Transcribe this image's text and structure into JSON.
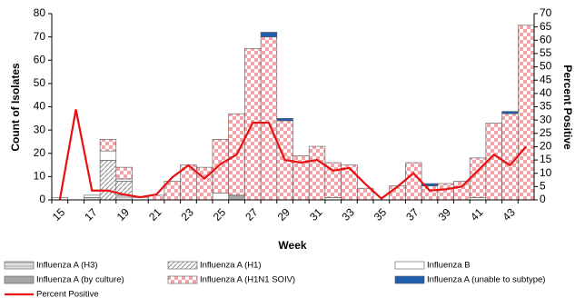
{
  "chart_data": {
    "type": "bar",
    "x_label": "Week",
    "y_label": "Count of Isolates",
    "y2_label": "Percent Positive",
    "categories": [
      "15",
      null,
      "17",
      null,
      "19",
      null,
      "21",
      null,
      "23",
      null,
      "25",
      null,
      "27",
      null,
      "29",
      null,
      "31",
      null,
      "33",
      null,
      "35",
      null,
      "37",
      null,
      "39",
      null,
      "41",
      null,
      "43",
      null
    ],
    "stacked": true,
    "series": [
      {
        "name": "Influenza A (H3)",
        "color": "#d0d0d0",
        "values": [
          0,
          0,
          1,
          0,
          2,
          0,
          0,
          0,
          0,
          0,
          0,
          0,
          0,
          0,
          0,
          0,
          0,
          0,
          0,
          0,
          0,
          0,
          0,
          0,
          0,
          0,
          0,
          0,
          0,
          0
        ]
      },
      {
        "name": "Influenza A (H1)",
        "color": "#a0a0a0",
        "values": [
          0,
          0,
          0,
          17,
          6,
          0,
          0,
          0,
          0,
          0,
          0,
          0,
          0,
          0,
          0,
          0,
          0,
          0,
          0,
          0,
          0,
          0,
          0,
          0,
          0,
          0,
          0,
          0,
          0,
          0
        ]
      },
      {
        "name": "Influenza B",
        "color": "#ffffff",
        "values": [
          1,
          0,
          1,
          4,
          1,
          1,
          0,
          0,
          0,
          0,
          3,
          0,
          0,
          0,
          0,
          0,
          0,
          1,
          0,
          0,
          0,
          0,
          0,
          0,
          0,
          0,
          1,
          0,
          0,
          0
        ]
      },
      {
        "name": "Influenza A (by culture)",
        "color": "#a6a6a6",
        "values": [
          0,
          0,
          0,
          0,
          0,
          0,
          0,
          0,
          0,
          0,
          0,
          2,
          0,
          0,
          0,
          0,
          0,
          0,
          0,
          0,
          0,
          0,
          0,
          0,
          0,
          0,
          0,
          0,
          0,
          0
        ]
      },
      {
        "name": "Influenza A (H1N1 SOIV)",
        "color": "#f4a3a8",
        "values": [
          0,
          0,
          0,
          5,
          5,
          0,
          2,
          8,
          15,
          14,
          23,
          35,
          65,
          70,
          34,
          19,
          23,
          15,
          15,
          5,
          0,
          6,
          16,
          6,
          7,
          8,
          17,
          33,
          37,
          75
        ]
      },
      {
        "name": "Influenza A (unable to subtype)",
        "color": "#1f5fad",
        "values": [
          0,
          0,
          0,
          0,
          0,
          0,
          0,
          0,
          0,
          0,
          0,
          0,
          0,
          2,
          1,
          0,
          0,
          0,
          0,
          0,
          0,
          0,
          0,
          1,
          0,
          0,
          0,
          0,
          1,
          0
        ]
      },
      {
        "name": "Percent Positive",
        "color": "#e81010",
        "type": "line",
        "axis": "y2",
        "values": [
          0,
          34,
          3.5,
          3.5,
          2,
          1,
          2,
          8.5,
          13,
          8,
          13.5,
          17,
          29,
          29,
          15,
          14,
          15,
          11,
          12,
          6,
          0.5,
          5,
          10,
          3.5,
          4,
          5,
          11,
          17,
          13,
          20
        ]
      }
    ],
    "ylim": [
      0,
      80
    ],
    "yticks": [
      0,
      10,
      20,
      30,
      40,
      50,
      60,
      70,
      80
    ],
    "y2lim": [
      0,
      70
    ],
    "y2ticks": [
      0,
      5,
      10,
      15,
      20,
      25,
      30,
      35,
      40,
      45,
      50,
      55,
      60,
      65,
      70
    ],
    "legend": "bottom"
  }
}
